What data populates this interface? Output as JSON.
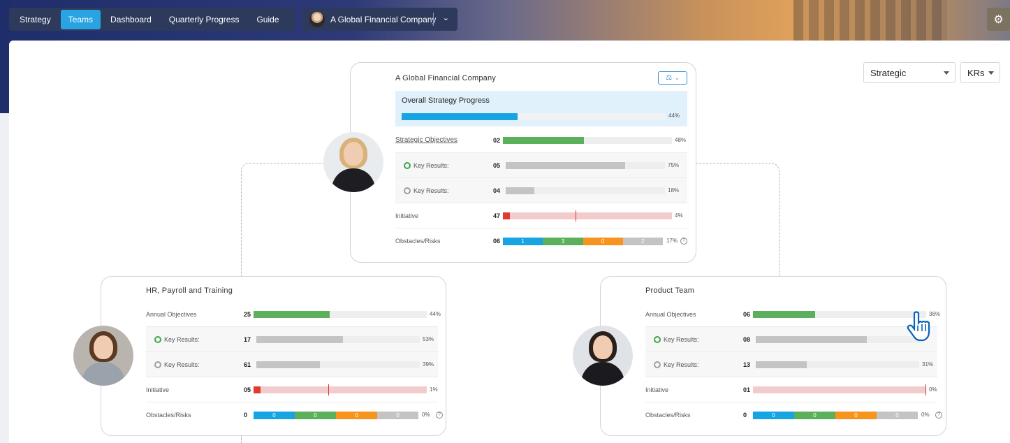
{
  "nav": {
    "items": [
      "Strategy",
      "Teams",
      "Dashboard",
      "Quarterly Progress",
      "Guide"
    ],
    "active": "Teams"
  },
  "company_selector": {
    "label": "A Global Financial Company"
  },
  "icons": {
    "settings": "gear-icon",
    "balance": "scale-icon",
    "dropdown": "chevron-down-icon"
  },
  "filters": {
    "view": "Strategic",
    "metric": "KRs"
  },
  "colors": {
    "accent": "#29a3e2",
    "progress_blue": "#17a4e2",
    "green": "#5cb05c",
    "grey": "#c4c4c4",
    "red": "#e03a32",
    "orange": "#f7941d",
    "obstacle_blue": "#17a4e2"
  },
  "top_card": {
    "title": "A Global Financial Company",
    "overall": {
      "label": "Overall Strategy Progress",
      "percent": 44,
      "pct_label": "44%"
    },
    "rows": [
      {
        "label": "Strategic Objectives",
        "count": "02",
        "percent": 48,
        "pct_label": "48%",
        "kind": "green"
      },
      {
        "label": "Key Results:",
        "count": "05",
        "percent": 75,
        "pct_label": "75%",
        "kind": "grey",
        "icon": "green"
      },
      {
        "label": "Key Results:",
        "count": "04",
        "percent": 18,
        "pct_label": "18%",
        "kind": "grey",
        "icon": "grey"
      },
      {
        "label": "Initiative",
        "count": "47",
        "percent": 4,
        "pct_label": "4%",
        "kind": "red"
      }
    ],
    "obstacles": {
      "label": "Obstacles/Risks",
      "count": "06",
      "segments": [
        "1",
        "3",
        "0",
        "2"
      ],
      "pct_label": "17%"
    }
  },
  "hr_card": {
    "title": "HR, Payroll and Training",
    "rows": [
      {
        "label": "Annual Objectives",
        "count": "25",
        "percent": 44,
        "pct_label": "44%",
        "kind": "green"
      },
      {
        "label": "Key Results:",
        "count": "17",
        "percent": 53,
        "pct_label": "53%",
        "kind": "grey",
        "icon": "green"
      },
      {
        "label": "Key Results:",
        "count": "61",
        "percent": 39,
        "pct_label": "39%",
        "kind": "grey",
        "icon": "grey"
      },
      {
        "label": "Initiative",
        "count": "05",
        "percent": 1,
        "pct_label": "1%",
        "kind": "red"
      }
    ],
    "obstacles": {
      "label": "Obstacles/Risks",
      "count": "0",
      "segments": [
        "0",
        "0",
        "0",
        "0"
      ],
      "pct_label": "0%"
    }
  },
  "product_card": {
    "title": "Product Team",
    "rows": [
      {
        "label": "Annual Objectives",
        "count": "06",
        "percent": 36,
        "pct_label": "36%",
        "kind": "green"
      },
      {
        "label": "Key Results:",
        "count": "08",
        "percent": 68,
        "pct_label": "",
        "kind": "grey",
        "icon": "green"
      },
      {
        "label": "Key Results:",
        "count": "13",
        "percent": 31,
        "pct_label": "31%",
        "kind": "grey",
        "icon": "grey"
      },
      {
        "label": "Initiative",
        "count": "01",
        "percent": 0,
        "pct_label": "0%",
        "kind": "red"
      }
    ],
    "obstacles": {
      "label": "Obstacles/Risks",
      "count": "0",
      "segments": [
        "0",
        "0",
        "0",
        "0"
      ],
      "pct_label": "0%"
    }
  }
}
